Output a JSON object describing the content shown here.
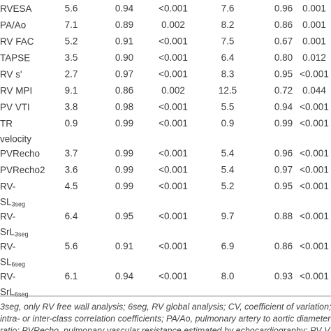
{
  "table": {
    "rows": [
      {
        "label": {
          "lines": [
            "RVESA"
          ]
        },
        "cells": [
          "5.6",
          "0.94",
          "<0.001",
          "7.6",
          "0.96",
          "0.001"
        ]
      },
      {
        "label": {
          "lines": [
            "PA/Ao"
          ]
        },
        "cells": [
          "7.1",
          "0.89",
          "0.002",
          "8.2",
          "0.86",
          "0.001"
        ]
      },
      {
        "label": {
          "lines": [
            "RV FAC"
          ]
        },
        "cells": [
          "5.2",
          "0.91",
          "<0.001",
          "7.5",
          "0.67",
          "0.001"
        ]
      },
      {
        "label": {
          "lines": [
            "TAPSE"
          ]
        },
        "cells": [
          "3.5",
          "0.90",
          "<0.001",
          "6.4",
          "0.80",
          "0.012"
        ]
      },
      {
        "label": {
          "lines": [
            "RV s'"
          ]
        },
        "cells": [
          "2.7",
          "0.97",
          "<0.001",
          "8.3",
          "0.95",
          "<0.001"
        ]
      },
      {
        "label": {
          "lines": [
            "RV MPI"
          ]
        },
        "cells": [
          "9.1",
          "0.86",
          "0.002",
          "12.5",
          "0.72",
          "0.044"
        ]
      },
      {
        "label": {
          "lines": [
            "PV VTI"
          ]
        },
        "cells": [
          "3.8",
          "0.98",
          "<0.001",
          "5.5",
          "0.94",
          "<0.001"
        ]
      },
      {
        "label": {
          "lines": [
            "TR",
            "velocity"
          ]
        },
        "cells": [
          "0.9",
          "0.99",
          "<0.001",
          "0.9",
          "0.99",
          "<0.001"
        ]
      },
      {
        "label": {
          "lines": [
            "PVRecho"
          ]
        },
        "cells": [
          "3.7",
          "0.99",
          "<0.001",
          "5.4",
          "0.96",
          "<0.001"
        ]
      },
      {
        "label": {
          "lines": [
            "PVRecho2"
          ]
        },
        "cells": [
          "3.6",
          "0.99",
          "<0.001",
          "5.4",
          "0.97",
          "<0.001"
        ]
      },
      {
        "label": {
          "lines": [
            "RV-",
            "SL"
          ],
          "sub": "3seg"
        },
        "cells": [
          "4.5",
          "0.99",
          "<0.001",
          "5.2",
          "0.95",
          "<0.001"
        ]
      },
      {
        "label": {
          "lines": [
            "RV-",
            "SrL"
          ],
          "sub": "3seg"
        },
        "cells": [
          "6.4",
          "0.95",
          "<0.001",
          "9.7",
          "0.88",
          "<0.001"
        ]
      },
      {
        "label": {
          "lines": [
            "RV-",
            "SL"
          ],
          "sub": "6seg"
        },
        "cells": [
          "5.6",
          "0.91",
          "<0.001",
          "6.9",
          "0.86",
          "<0.001"
        ]
      },
      {
        "label": {
          "lines": [
            "RV-",
            "SrL"
          ],
          "sub": "6seg"
        },
        "cells": [
          "6.1",
          "0.94",
          "<0.001",
          "8.0",
          "0.93",
          "<0.001"
        ]
      }
    ],
    "footnote": [
      "3seg, only RV free wall analysis; 6seg, RV global analysis; CV, coefficient of variation; ICC,",
      "intra- or inter-class correlation coefficients; PA/Ao, pulmonary artery to aortic diameter",
      "ratio; PVRecho, pulmonary vascular resistance estimated by echocardiography; PV VTI,"
    ]
  }
}
